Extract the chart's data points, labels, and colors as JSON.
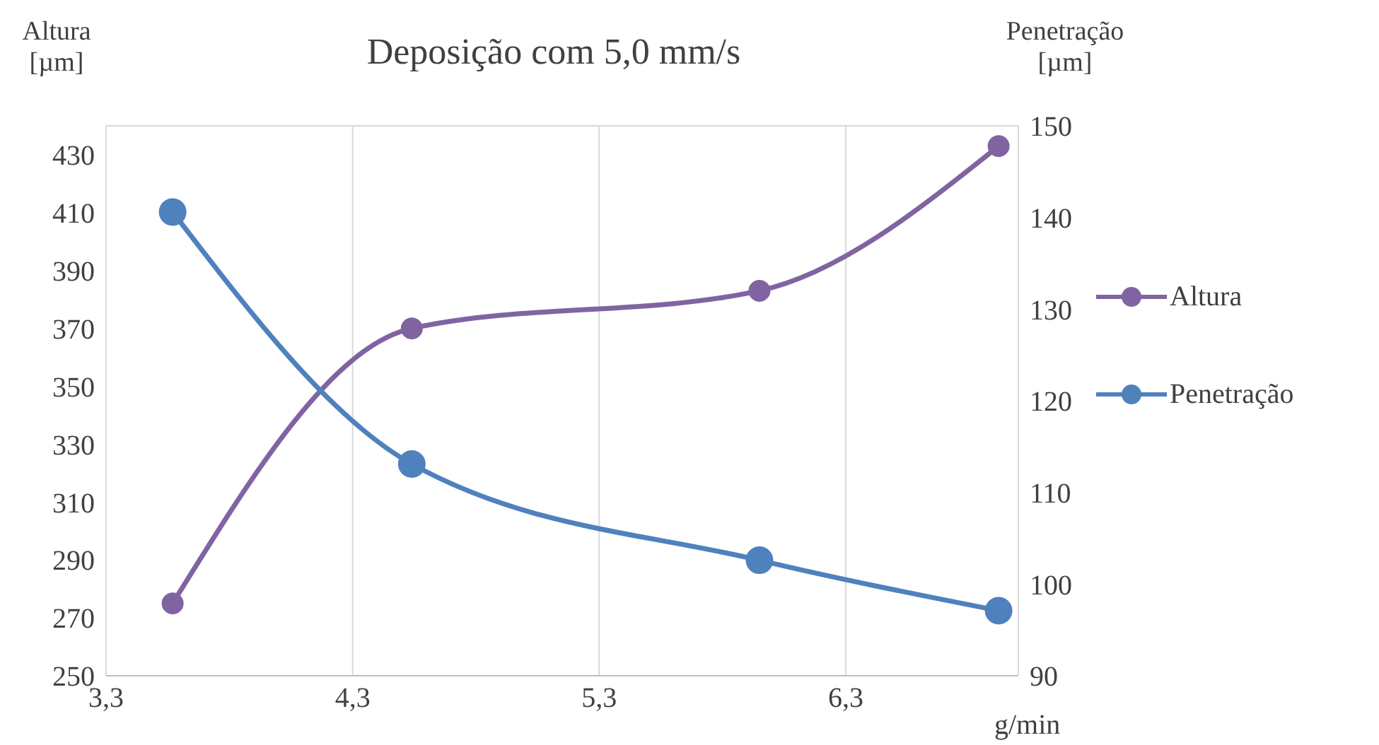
{
  "chart_data": {
    "type": "line",
    "title": "Deposição com 5,0 mm/s",
    "xlabel": "g/min",
    "ylabel": "Altura [µm]",
    "y2label": "Penetração [µm]",
    "series": [
      {
        "name": "Altura",
        "color": "#8064a2",
        "x": [
          3.57,
          4.54,
          5.95,
          6.92
        ],
        "values": [
          275,
          370,
          383,
          433
        ]
      },
      {
        "name": "Penetração",
        "color": "#4f81bd",
        "axis": "y2",
        "x": [
          3.57,
          4.54,
          5.95,
          6.92
        ],
        "values": [
          140.6,
          113.1,
          102.6,
          97.1
        ]
      }
    ],
    "xlim": [
      3.3,
      7.0
    ],
    "xticks": [
      {
        "value": 3.3,
        "label": "3,3"
      },
      {
        "value": 4.3,
        "label": "4,3"
      },
      {
        "value": 5.3,
        "label": "5,3"
      },
      {
        "value": 6.3,
        "label": "6,3"
      }
    ],
    "ylim": [
      250,
      440
    ],
    "yticks": [
      250,
      270,
      290,
      310,
      330,
      350,
      370,
      390,
      410,
      430
    ],
    "y2lim": [
      90,
      150
    ],
    "y2ticks": [
      90,
      100,
      110,
      120,
      130,
      140,
      150
    ],
    "grid": true,
    "legend": "right",
    "marker": "circle",
    "line_style": "solid"
  }
}
